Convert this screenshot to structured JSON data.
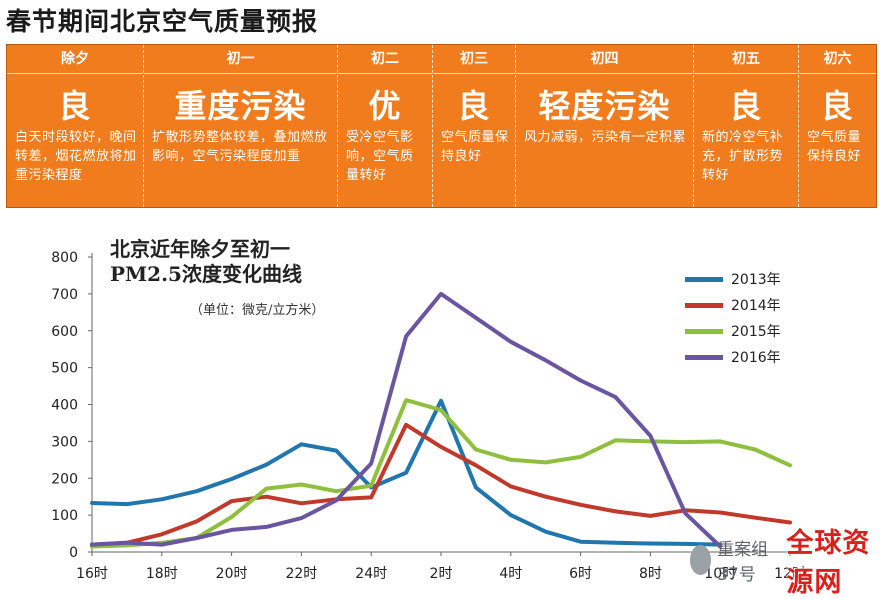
{
  "headline": "春节期间北京空气质量预报",
  "forecast": [
    {
      "day": "除夕",
      "grade": "良",
      "note": "白天时段较好，晚间转差，烟花燃放将加重污染程度"
    },
    {
      "day": "初一",
      "grade": "重度污染",
      "note": "扩散形势整体较差，叠加燃放影响，空气污染程度加重"
    },
    {
      "day": "初二",
      "grade": "优",
      "note": "受冷空气影响，空气质量转好"
    },
    {
      "day": "初三",
      "grade": "良",
      "note": "空气质量保持良好"
    },
    {
      "day": "初四",
      "grade": "轻度污染",
      "note": "风力减弱，污染有一定积累"
    },
    {
      "day": "初五",
      "grade": "良",
      "note": "新的冷空气补充，扩散形势转好"
    },
    {
      "day": "初六",
      "grade": "良",
      "note": "空气质量保持良好"
    }
  ],
  "chart_data": {
    "type": "line",
    "title": "北京近年除夕至初一 PM2.5浓度变化曲线",
    "title_line1": "北京近年除夕至初一",
    "title_line2": "PM2.5浓度变化曲线",
    "unit_note": "（单位：微克/立方米）",
    "ylim": [
      0,
      800
    ],
    "yticks": [
      0,
      100,
      200,
      300,
      400,
      500,
      600,
      700,
      800
    ],
    "xticks": [
      {
        "h": 16,
        "label": "16时"
      },
      {
        "h": 18,
        "label": "18时"
      },
      {
        "h": 20,
        "label": "20时"
      },
      {
        "h": 22,
        "label": "22时"
      },
      {
        "h": 24,
        "label": "24时"
      },
      {
        "h": 26,
        "label": "2时"
      },
      {
        "h": 28,
        "label": "4时"
      },
      {
        "h": 30,
        "label": "6时"
      },
      {
        "h": 32,
        "label": "8时"
      },
      {
        "h": 34,
        "label": "10时"
      },
      {
        "h": 36,
        "label": "12时"
      }
    ],
    "x_hours": [
      16,
      17,
      18,
      19,
      20,
      21,
      22,
      23,
      24,
      25,
      26,
      27,
      28,
      29,
      30,
      31,
      32,
      33,
      34,
      35,
      36
    ],
    "grid": false,
    "legend_position": "top-right",
    "series": [
      {
        "name": "2013年",
        "color": "#2176ae",
        "values": [
          133,
          130,
          143,
          165,
          198,
          237,
          292,
          275,
          175,
          215,
          410,
          175,
          100,
          55,
          28,
          25,
          23,
          22,
          20,
          null,
          null
        ]
      },
      {
        "name": "2014年",
        "color": "#c0392b",
        "values": [
          20,
          25,
          48,
          83,
          138,
          150,
          132,
          143,
          148,
          345,
          285,
          235,
          178,
          150,
          128,
          110,
          98,
          113,
          107,
          93,
          80
        ]
      },
      {
        "name": "2015年",
        "color": "#8fbf3f",
        "values": [
          15,
          18,
          25,
          38,
          95,
          172,
          183,
          165,
          180,
          412,
          385,
          278,
          250,
          243,
          258,
          303,
          300,
          298,
          300,
          278,
          235
        ]
      },
      {
        "name": "2016年",
        "color": "#6a55a0",
        "values": [
          20,
          25,
          20,
          38,
          60,
          68,
          92,
          140,
          240,
          585,
          700,
          635,
          570,
          520,
          465,
          420,
          315,
          105,
          15,
          null,
          null
        ]
      }
    ]
  },
  "watermark": {
    "account": "重案组37号",
    "logo": "全球资源网"
  }
}
